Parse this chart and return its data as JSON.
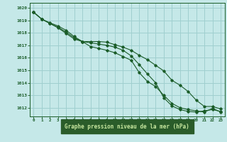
{
  "title": "Graphe pression niveau de la mer (hPa)",
  "bg_color": "#c5e8e8",
  "grid_color": "#9fcfcf",
  "line_color": "#1a5c28",
  "label_bg": "#2a5c2a",
  "label_fg": "#c8e8a0",
  "xlim": [
    -0.5,
    23.5
  ],
  "ylim": [
    1011.3,
    1020.4
  ],
  "yticks": [
    1012,
    1013,
    1014,
    1015,
    1016,
    1017,
    1018,
    1019,
    1020
  ],
  "xticks": [
    0,
    1,
    2,
    3,
    4,
    5,
    6,
    7,
    8,
    9,
    10,
    11,
    12,
    13,
    14,
    15,
    16,
    17,
    18,
    19,
    20,
    21,
    22,
    23
  ],
  "series1": [
    1019.65,
    1019.1,
    1018.8,
    1018.55,
    1018.2,
    1017.7,
    1017.3,
    1017.3,
    1017.3,
    1017.25,
    1017.05,
    1016.85,
    1016.6,
    1016.2,
    1015.85,
    1015.4,
    1014.95,
    1014.2,
    1013.8,
    1013.3,
    1012.6,
    1012.1,
    1012.1,
    1011.9
  ],
  "series2": [
    1019.65,
    1019.1,
    1018.75,
    1018.45,
    1018.05,
    1017.6,
    1017.3,
    1017.2,
    1017.1,
    1017.0,
    1016.85,
    1016.6,
    1016.15,
    1015.45,
    1014.7,
    1014.0,
    1012.8,
    1012.15,
    1011.85,
    1011.7,
    1011.65,
    1011.75,
    1011.85,
    1011.7
  ],
  "series3": [
    1019.65,
    1019.1,
    1018.75,
    1018.4,
    1017.95,
    1017.5,
    1017.3,
    1016.9,
    1016.75,
    1016.6,
    1016.4,
    1016.1,
    1015.8,
    1014.8,
    1014.1,
    1013.7,
    1013.0,
    1012.35,
    1012.0,
    1011.85,
    1011.75,
    1011.65,
    1011.95,
    1011.65
  ]
}
